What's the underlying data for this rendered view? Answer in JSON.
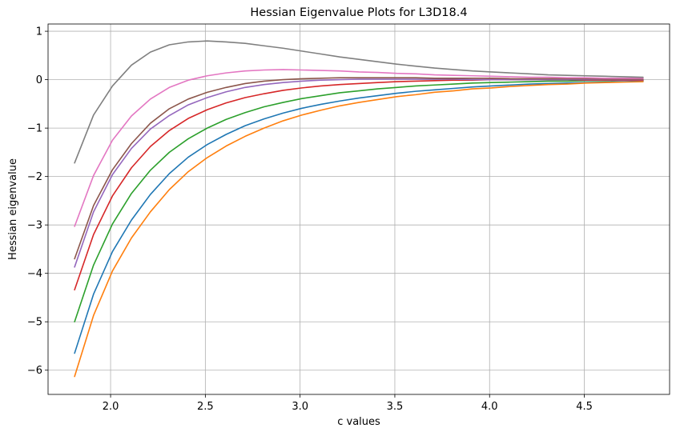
{
  "chart_data": {
    "type": "line",
    "title": "Hessian Eigenvalue Plots for L3D18.4",
    "xlabel": "c values",
    "ylabel": "Hessian eigenvalue",
    "xlim": [
      1.67,
      4.95
    ],
    "ylim": [
      -6.5,
      1.15
    ],
    "xticks": [
      2.0,
      2.5,
      3.0,
      3.5,
      4.0,
      4.5
    ],
    "xtick_labels": [
      "2.0",
      "2.5",
      "3.0",
      "3.5",
      "4.0",
      "4.5"
    ],
    "yticks": [
      -6,
      -5,
      -4,
      -3,
      -2,
      -1,
      0,
      1
    ],
    "ytick_labels": [
      "−6",
      "−5",
      "−4",
      "−3",
      "−2",
      "−1",
      "0",
      "1"
    ],
    "grid": true,
    "x": [
      1.81,
      1.91,
      2.01,
      2.11,
      2.21,
      2.31,
      2.41,
      2.51,
      2.61,
      2.71,
      2.81,
      2.91,
      3.01,
      3.11,
      3.21,
      3.31,
      3.41,
      3.51,
      3.61,
      3.71,
      3.81,
      3.91,
      4.01,
      4.11,
      4.21,
      4.31,
      4.41,
      4.51,
      4.61,
      4.71,
      4.81
    ],
    "series": [
      {
        "color": "#1f77b4",
        "values": [
          -5.65,
          -4.43,
          -3.55,
          -2.9,
          -2.37,
          -1.94,
          -1.6,
          -1.34,
          -1.13,
          -0.95,
          -0.81,
          -0.69,
          -0.59,
          -0.51,
          -0.44,
          -0.38,
          -0.33,
          -0.28,
          -0.24,
          -0.21,
          -0.18,
          -0.15,
          -0.13,
          -0.11,
          -0.09,
          -0.08,
          -0.07,
          -0.06,
          -0.05,
          -0.04,
          -0.03
        ]
      },
      {
        "color": "#ff7f0e",
        "values": [
          -6.13,
          -4.87,
          -3.95,
          -3.27,
          -2.73,
          -2.27,
          -1.9,
          -1.61,
          -1.37,
          -1.17,
          -1.0,
          -0.85,
          -0.73,
          -0.63,
          -0.54,
          -0.47,
          -0.41,
          -0.35,
          -0.31,
          -0.26,
          -0.23,
          -0.19,
          -0.17,
          -0.14,
          -0.12,
          -0.1,
          -0.09,
          -0.07,
          -0.06,
          -0.05,
          -0.04
        ]
      },
      {
        "color": "#2ca02c",
        "values": [
          -5.0,
          -3.83,
          -2.98,
          -2.35,
          -1.87,
          -1.5,
          -1.22,
          -1.0,
          -0.82,
          -0.68,
          -0.56,
          -0.47,
          -0.39,
          -0.33,
          -0.27,
          -0.23,
          -0.19,
          -0.16,
          -0.13,
          -0.11,
          -0.09,
          -0.07,
          -0.06,
          -0.05,
          -0.04,
          -0.03,
          -0.03,
          -0.02,
          -0.02,
          -0.01,
          -0.01
        ]
      },
      {
        "color": "#d62728",
        "values": [
          -4.34,
          -3.2,
          -2.4,
          -1.82,
          -1.38,
          -1.05,
          -0.8,
          -0.62,
          -0.48,
          -0.37,
          -0.29,
          -0.22,
          -0.17,
          -0.13,
          -0.1,
          -0.08,
          -0.06,
          -0.04,
          -0.03,
          -0.02,
          -0.01,
          -0.01,
          0.0,
          0.0,
          0.0,
          0.0,
          0.0,
          -0.01,
          -0.01,
          -0.01,
          -0.01
        ]
      },
      {
        "color": "#9467bd",
        "values": [
          -3.87,
          -2.73,
          -1.96,
          -1.42,
          -1.02,
          -0.74,
          -0.52,
          -0.37,
          -0.25,
          -0.16,
          -0.1,
          -0.06,
          -0.03,
          -0.01,
          0.0,
          0.01,
          0.01,
          0.01,
          0.01,
          0.01,
          0.01,
          0.0,
          0.0,
          0.0,
          0.0,
          0.0,
          0.0,
          0.0,
          0.0,
          0.0,
          0.0
        ]
      },
      {
        "color": "#8c564b",
        "values": [
          -3.7,
          -2.6,
          -1.86,
          -1.32,
          -0.9,
          -0.6,
          -0.4,
          -0.26,
          -0.16,
          -0.08,
          -0.03,
          0.0,
          0.02,
          0.03,
          0.04,
          0.04,
          0.04,
          0.04,
          0.04,
          0.03,
          0.03,
          0.03,
          0.03,
          0.02,
          0.02,
          0.02,
          0.02,
          0.02,
          0.01,
          0.01,
          0.01
        ]
      },
      {
        "color": "#e377c2",
        "values": [
          -3.03,
          -1.98,
          -1.25,
          -0.75,
          -0.4,
          -0.16,
          -0.01,
          0.08,
          0.14,
          0.18,
          0.2,
          0.21,
          0.2,
          0.19,
          0.18,
          0.16,
          0.15,
          0.13,
          0.12,
          0.1,
          0.09,
          0.08,
          0.07,
          0.06,
          0.05,
          0.05,
          0.04,
          0.04,
          0.03,
          0.03,
          0.03
        ]
      },
      {
        "color": "#7f7f7f",
        "values": [
          -1.72,
          -0.73,
          -0.13,
          0.3,
          0.57,
          0.72,
          0.78,
          0.8,
          0.78,
          0.75,
          0.7,
          0.65,
          0.59,
          0.53,
          0.47,
          0.42,
          0.37,
          0.32,
          0.28,
          0.24,
          0.21,
          0.18,
          0.16,
          0.14,
          0.12,
          0.1,
          0.09,
          0.08,
          0.07,
          0.06,
          0.05
        ]
      }
    ]
  }
}
